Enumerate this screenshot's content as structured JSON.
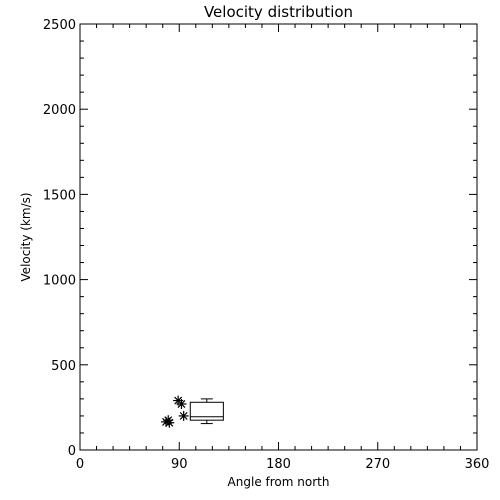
{
  "chart_data": {
    "type": "scatter",
    "title": "Velocity distribution",
    "xlabel": "Angle from north",
    "ylabel": "Velocity (km/s)",
    "xlim": [
      0,
      360
    ],
    "ylim": [
      0,
      2500
    ],
    "xticks": [
      0,
      90,
      180,
      270,
      360
    ],
    "xtick_labels": [
      "0",
      "90",
      "180",
      "270",
      "360"
    ],
    "yticks": [
      0,
      500,
      1000,
      1500,
      2000,
      2500
    ],
    "ytick_labels": [
      "0",
      "500",
      "1000",
      "1500",
      "2000",
      "2500"
    ],
    "minor_ticks_per_major": {
      "x": 6,
      "y": 5
    },
    "grid": false,
    "series": [
      {
        "marker": "asterisk",
        "points": [
          {
            "x": 78,
            "y": 165
          },
          {
            "x": 80,
            "y": 175
          },
          {
            "x": 81,
            "y": 160
          },
          {
            "x": 89,
            "y": 290
          },
          {
            "x": 92,
            "y": 270
          },
          {
            "x": 94,
            "y": 200
          }
        ]
      }
    ],
    "boxplot": {
      "x_center": 115,
      "x_range": [
        100,
        130
      ],
      "whisker_low": 155,
      "q1": 175,
      "median": 195,
      "q3": 280,
      "whisker_high": 300
    },
    "colors": {
      "axis": "#000000",
      "marker": "#000000",
      "background": "#ffffff"
    }
  }
}
